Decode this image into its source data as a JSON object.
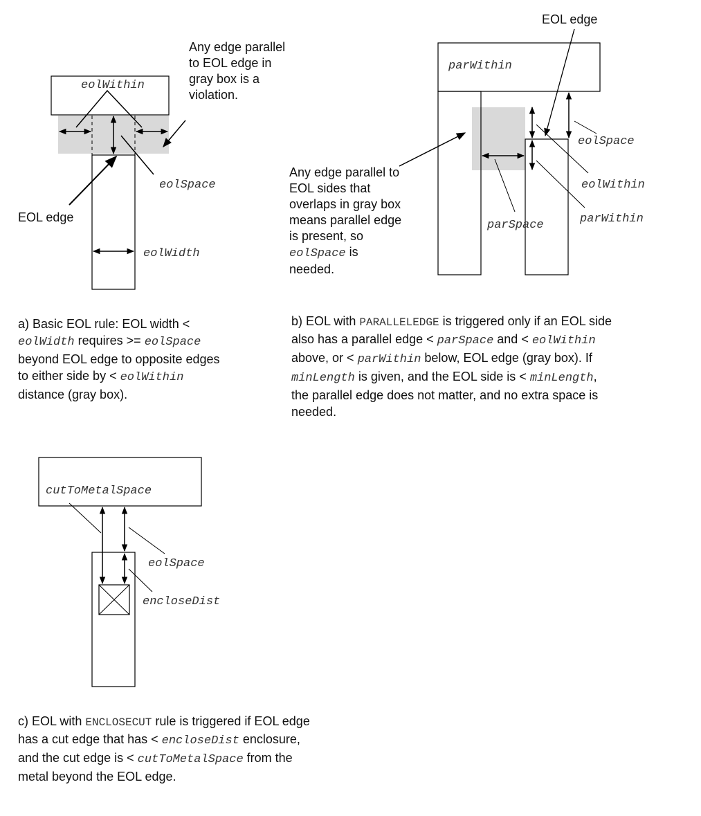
{
  "diagram_a": {
    "label_eol_within": "eolWithin",
    "label_eol_space": "eolSpace",
    "label_eol_width": "eolWidth",
    "label_eol_edge": "EOL edge",
    "note": {
      "l1": "Any edge parallel",
      "l2": "to EOL edge in",
      "l3": "gray box is a",
      "l4": "violation."
    },
    "caption": {
      "l1_a": "a) Basic EOL rule: EOL width <",
      "l2_m1": "eolWidth",
      "l2_t": " requires >= ",
      "l2_m2": "eolSpace",
      "l3": "beyond EOL edge to opposite edges",
      "l4_t": "to either side by < ",
      "l4_m": "eolWithin",
      "l5": "distance (gray box)."
    }
  },
  "diagram_b": {
    "label_eol_edge": "EOL edge",
    "label_par_within_box": "parWithin",
    "label_eol_space": "eolSpace",
    "label_eol_within": "eolWithin",
    "label_par_within": "parWithin",
    "label_par_space": "parSpace",
    "note": {
      "l1": "Any edge parallel to",
      "l2": "EOL sides that",
      "l3": "overlaps in gray box",
      "l4": "means parallel edge",
      "l5": "is present, so",
      "l6_m": "eolSpace",
      "l6_t": " is",
      "l7": "needed."
    },
    "caption": {
      "l1_a": "b) EOL with ",
      "l1_k": "PARALLELEDGE",
      "l1_b": " is triggered only if an EOL side",
      "l2_a": "also has a parallel edge < ",
      "l2_m1": "parSpace",
      "l2_b": " and < ",
      "l2_m2": "eolWithin",
      "l3_a": "above, or < ",
      "l3_m": "parWithin",
      "l3_b": " below, EOL edge (gray box). If",
      "l4_m1": "minLength",
      "l4_a": " is given, and the EOL side is < ",
      "l4_m2": "minLength",
      "l4_b": ",",
      "l5": "the parallel edge does not matter, and no extra space is",
      "l6": "needed."
    }
  },
  "diagram_c": {
    "label_cut_to_metal": "cutToMetalSpace",
    "label_eol_space": "eolSpace",
    "label_enclose_dist": "encloseDist",
    "caption": {
      "l1_a": "c) EOL with ",
      "l1_k": "ENCLOSECUT",
      "l1_b": " rule is triggered if  EOL edge",
      "l2_a": "has a cut edge that has < ",
      "l2_m": "encloseDist",
      "l2_b": " enclosure,",
      "l3_a": "and the cut edge is < ",
      "l3_m": "cutToMetalSpace",
      "l3_b": " from the",
      "l4": "metal beyond the EOL edge."
    }
  },
  "colors": {
    "gray_box": "#d9d9d9",
    "line": "#000000"
  }
}
